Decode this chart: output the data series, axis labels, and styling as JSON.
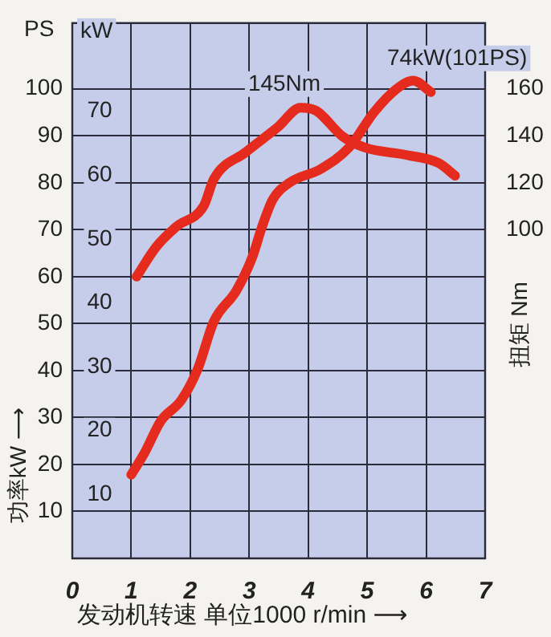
{
  "chart_data": {
    "type": "line",
    "xlabel": "发动机转速 单位1000 r/min ⟶",
    "ylabel": "功率kW ⟶",
    "y2label": "扭矩 Nm",
    "annotations": [
      "PS",
      "kW",
      "74kW(101PS)",
      "145Nm"
    ],
    "xlim": [
      0,
      7
    ],
    "xticks": [
      0,
      1,
      2,
      3,
      4,
      5,
      6,
      7
    ],
    "ylim": [
      0,
      114
    ],
    "yticks": [
      10,
      20,
      30,
      40,
      50,
      60,
      70,
      80,
      90,
      100
    ],
    "y3lim": [
      0,
      83.8
    ],
    "y3ticks": [
      10,
      20,
      30,
      40,
      50,
      60,
      70
    ],
    "y2lim": [
      -40,
      188
    ],
    "y2ticks": [
      100,
      120,
      140,
      160
    ],
    "grid": true,
    "legend": false,
    "marker": "none",
    "line_style": "solid",
    "series": [
      {
        "axis": "y3",
        "color": "#e52b1e",
        "x": [
          1.0,
          1.23,
          1.5,
          1.85,
          2.13,
          2.4,
          2.78,
          3.05,
          3.22,
          3.4,
          3.68,
          4.22,
          4.69,
          5.12,
          5.5,
          5.78,
          6.08
        ],
        "values": [
          13.1,
          16.6,
          21.5,
          24.8,
          29.7,
          37.1,
          41.9,
          47.1,
          52,
          56.2,
          58.8,
          61,
          64.3,
          69.9,
          73.5,
          74.8,
          73
        ]
      },
      {
        "axis": "y2",
        "color": "#e52b1e",
        "x": [
          1.09,
          1.42,
          1.77,
          2.23,
          2.4,
          2.94,
          3.49,
          3.87,
          4.14,
          4.58,
          4.96,
          5.67,
          6.21,
          6.49
        ],
        "values": [
          80,
          92.6,
          101.4,
          110.2,
          121.6,
          133,
          143.8,
          152,
          150.6,
          139.8,
          135,
          131.8,
          128.4,
          123
        ]
      }
    ]
  }
}
